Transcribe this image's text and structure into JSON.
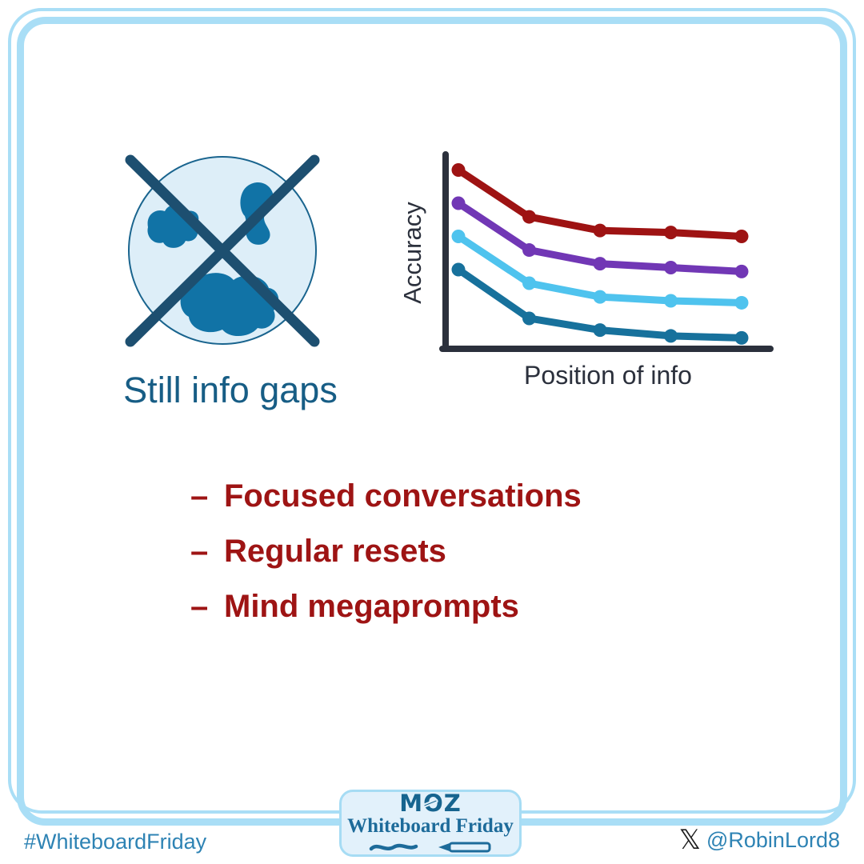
{
  "canvas": {
    "bg": "#ffffff",
    "frame_color": "#a9def6"
  },
  "info_gaps": {
    "caption": "Still info gaps",
    "caption_color": "#175d85",
    "circle_fill": "#ddeef8",
    "circle_stroke": "#19648e",
    "blob_color": "#1173a6",
    "cross_color": "#1d4f70"
  },
  "chart_data": {
    "type": "line",
    "title": "",
    "xlabel": "Position of info",
    "ylabel": "Accuracy",
    "x": [
      1,
      2,
      3,
      4,
      5
    ],
    "x_meaning": "position of info in context (early to late), no tick labels shown",
    "ylim": [
      0,
      1
    ],
    "grid": false,
    "legend": null,
    "axis_color": "#2b303c",
    "series": [
      {
        "name": "series-dark-red",
        "color": "#9e1313",
        "values": [
          0.92,
          0.68,
          0.61,
          0.6,
          0.58
        ]
      },
      {
        "name": "series-purple",
        "color": "#7137b5",
        "values": [
          0.75,
          0.51,
          0.44,
          0.42,
          0.4
        ]
      },
      {
        "name": "series-light-blue",
        "color": "#4fc3ee",
        "values": [
          0.58,
          0.34,
          0.27,
          0.25,
          0.24
        ]
      },
      {
        "name": "series-teal",
        "color": "#17719c",
        "values": [
          0.41,
          0.16,
          0.1,
          0.07,
          0.06
        ]
      }
    ]
  },
  "bullets": {
    "color": "#9e1414",
    "items": [
      {
        "dash": "–",
        "label": "Focused conversations"
      },
      {
        "dash": "–",
        "label": "Regular resets"
      },
      {
        "dash": "–",
        "label": "Mind megaprompts"
      }
    ]
  },
  "footer": {
    "hashtag": "#WhiteboardFriday",
    "handle": "@RobinLord8",
    "x_logo_glyph": "𝕏",
    "text_color": "#2e83b4",
    "badge": {
      "brand": "MOZ",
      "title": "Whiteboard Friday",
      "fill": "#e2f1fb",
      "border": "#a6dcf4",
      "brand_color": "#16648f"
    }
  }
}
